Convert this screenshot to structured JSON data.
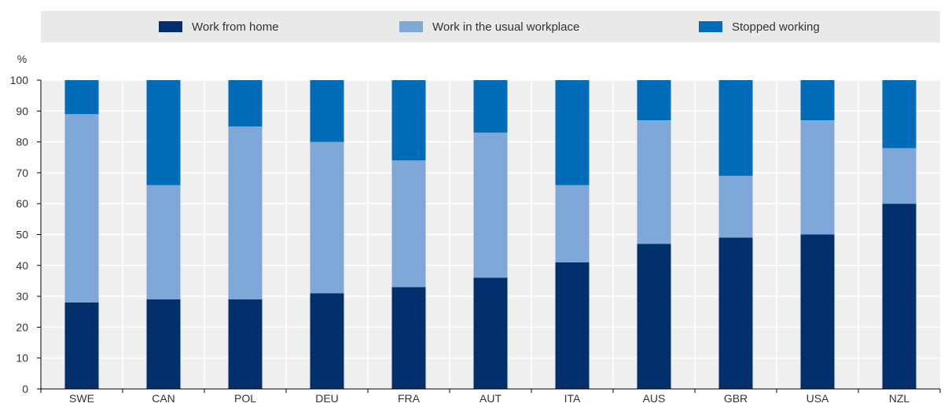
{
  "chart_data": {
    "type": "bar",
    "stacked": true,
    "ylabel": "%",
    "ylim": [
      0,
      100
    ],
    "yticks": [
      0,
      10,
      20,
      30,
      40,
      50,
      60,
      70,
      80,
      90,
      100
    ],
    "grid": true,
    "legend_position": "top",
    "categories": [
      "SWE",
      "CAN",
      "POL",
      "DEU",
      "FRA",
      "AUT",
      "ITA",
      "AUS",
      "GBR",
      "USA",
      "NZL"
    ],
    "series": [
      {
        "name": "Work from home",
        "color": "#002f6c",
        "values": [
          28,
          29,
          29,
          31,
          33,
          36,
          41,
          47,
          49,
          50,
          60
        ]
      },
      {
        "name": "Work in the usual workplace",
        "color": "#7fa8d9",
        "values": [
          61,
          37,
          56,
          49,
          41,
          47,
          25,
          40,
          20,
          37,
          18
        ]
      },
      {
        "name": "Stopped working",
        "color": "#006bb6",
        "values": [
          11,
          34,
          15,
          20,
          26,
          17,
          34,
          13,
          31,
          13,
          22
        ]
      }
    ]
  },
  "colors": {
    "plot_background": "#efefef",
    "legend_background": "#e9e9e9",
    "gridline": "#ffffff",
    "axis": "#000000"
  }
}
